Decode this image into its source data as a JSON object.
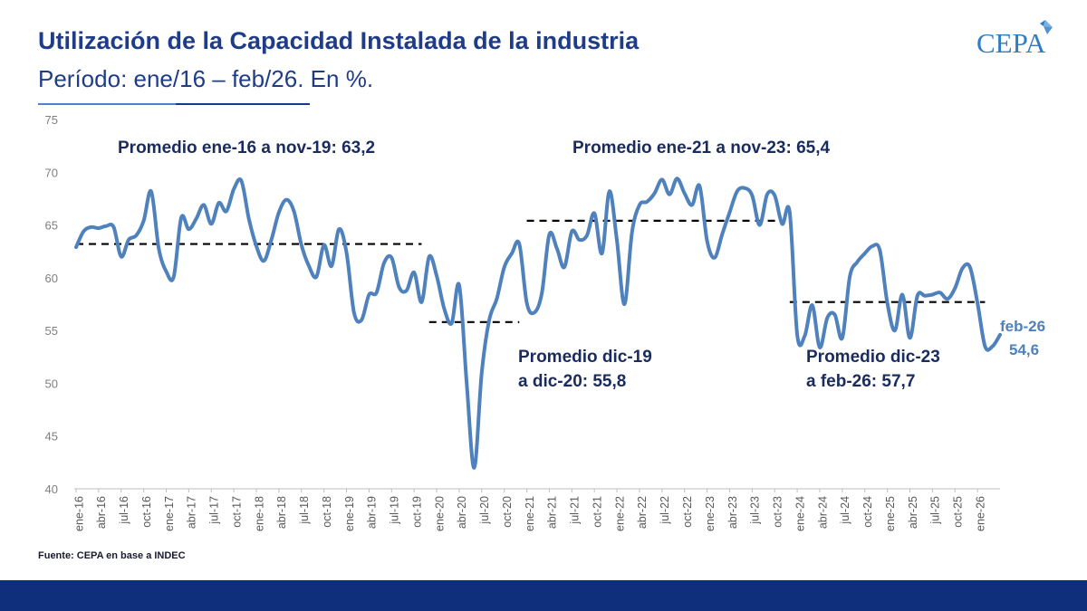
{
  "title": "Utilización de la Capacidad Instalada de la industria",
  "subtitle": "Período: ene/16 – feb/26. En %.",
  "logo_text": "CEPA",
  "source": "Fuente: CEPA en base a INDEC",
  "colors": {
    "line": "#4f81bd",
    "title": "#1f3c88",
    "annotation": "#1a2b5e",
    "footer": "#0f2f7c"
  },
  "chart_data": {
    "type": "line",
    "title": "Utilización de la Capacidad Instalada de la industria",
    "subtitle": "Período: ene/16 – feb/26. En %.",
    "xlabel": "",
    "ylabel": "",
    "ylim": [
      40,
      75
    ],
    "yticks": [
      40,
      45,
      50,
      55,
      60,
      65,
      70,
      75
    ],
    "xtick_labels": [
      "ene-16",
      "abr-16",
      "jul-16",
      "oct-16",
      "ene-17",
      "abr-17",
      "jul-17",
      "oct-17",
      "ene-18",
      "abr-18",
      "jul-18",
      "oct-18",
      "ene-19",
      "abr-19",
      "jul-19",
      "oct-19",
      "ene-20",
      "abr-20",
      "jul-20",
      "oct-20",
      "ene-21",
      "abr-21",
      "jul-21",
      "oct-21",
      "ene-22",
      "abr-22",
      "jul-22",
      "oct-22",
      "ene-23",
      "abr-23",
      "jul-23",
      "oct-23",
      "ene-24",
      "abr-24",
      "jul-24",
      "oct-24",
      "ene-25",
      "abr-25",
      "jul-25",
      "oct-25",
      "ene-26"
    ],
    "grid": false,
    "series": [
      {
        "values": [
          62.9,
          64.4,
          64.8,
          64.7,
          64.9,
          64.8,
          62.0,
          63.6,
          64.0,
          65.4,
          68.2,
          62.8,
          60.6,
          60.1,
          65.7,
          64.6,
          65.6,
          66.9,
          65.1,
          67.1,
          66.3,
          68.4,
          69.2,
          65.6,
          63.0,
          61.6,
          63.6,
          66.2,
          67.4,
          66.3,
          63.1,
          61.1,
          60.1,
          63.1,
          61.1,
          64.6,
          62.4,
          56.7,
          56.0,
          58.4,
          58.6,
          61.4,
          61.9,
          59.1,
          58.8,
          60.5,
          57.7,
          62.0,
          60.2,
          57.1,
          55.7,
          59.3,
          50.0,
          42.0,
          51.0,
          56.0,
          58.0,
          61.0,
          62.3,
          63.2,
          57.6,
          56.7,
          58.5,
          64.1,
          62.8,
          61.0,
          64.4,
          63.6,
          64.0,
          66.1,
          62.3,
          68.2,
          63.5,
          57.5,
          64.3,
          66.9,
          67.2,
          68.0,
          69.3,
          67.9,
          69.4,
          68.0,
          66.9,
          68.7,
          63.5,
          61.9,
          64.1,
          66.2,
          68.2,
          68.5,
          67.8,
          65.0,
          67.9,
          67.8,
          65.1,
          66.2,
          54.6,
          54.5,
          57.4,
          53.4,
          56.2,
          56.5,
          54.3,
          60.1,
          61.5,
          62.3,
          63.0,
          62.6,
          57.6,
          55.0,
          58.4,
          54.3,
          58.3,
          58.3,
          58.4,
          58.6,
          58.0,
          59.0,
          60.9,
          61.0,
          57.6,
          53.5,
          53.5,
          54.6
        ]
      }
    ],
    "averages": [
      {
        "label": "Promedio ene-16 a nov-19: 63,2",
        "value": 63.2,
        "from": "ene-16",
        "to": "nov-19"
      },
      {
        "label_line1": "Promedio dic-19",
        "label_line2": "a dic-20: 55,8",
        "value": 55.8,
        "from": "dic-19",
        "to": "dic-20"
      },
      {
        "label": "Promedio ene-21 a nov-23: 65,4",
        "value": 65.4,
        "from": "ene-21",
        "to": "nov-23"
      },
      {
        "label_line1": "Promedio dic-23",
        "label_line2": "a feb-26: 57,7",
        "value": 57.7,
        "from": "dic-23",
        "to": "feb-26"
      }
    ],
    "last_point": {
      "label": "feb-26",
      "value_label": "54,6",
      "value": 54.6
    }
  }
}
